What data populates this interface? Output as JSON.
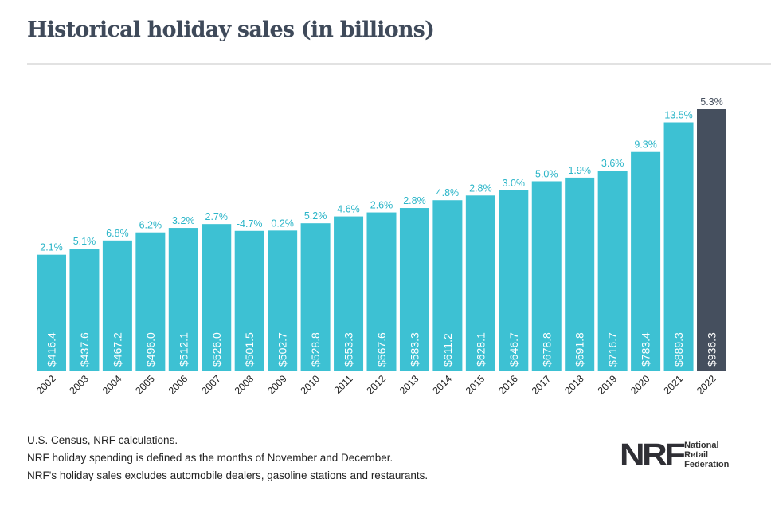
{
  "title": "Historical holiday sales (in billions)",
  "notes": [
    "U.S. Census, NRF calculations.",
    "NRF holiday spending is defined as the months of November and December.",
    "NRF's holiday sales excludes automobile dealers, gasoline stations and restaurants."
  ],
  "logo": {
    "mark": "NRF",
    "lines": [
      "National",
      "Retail",
      "Federation"
    ]
  },
  "colors": {
    "bar": "#3dc1d3",
    "highlight": "#454f5e",
    "pct": "#2bb5c8",
    "pct_highlight": "#454f5e"
  },
  "chart_data": {
    "type": "bar",
    "title": "Historical holiday sales (in billions)",
    "xlabel": "",
    "ylabel": "",
    "ylim": [
      0,
      936.3
    ],
    "categories": [
      "2002",
      "2003",
      "2004",
      "2005",
      "2006",
      "2007",
      "2008",
      "2009",
      "2010",
      "2011",
      "2012",
      "2013",
      "2014",
      "2015",
      "2016",
      "2017",
      "2018",
      "2019",
      "2020",
      "2021",
      "2022"
    ],
    "values": [
      416.4,
      437.6,
      467.2,
      496.0,
      512.1,
      526.0,
      501.5,
      502.7,
      528.8,
      553.3,
      567.6,
      583.3,
      611.2,
      628.1,
      646.7,
      678.8,
      691.8,
      716.7,
      783.4,
      889.3,
      936.3
    ],
    "value_labels": [
      "$416.4",
      "$437.6",
      "$467.2",
      "$496.0",
      "$512.1",
      "$526.0",
      "$501.5",
      "$502.7",
      "$528.8",
      "$553.3",
      "$567.6",
      "$583.3",
      "$611.2",
      "$628.1",
      "$646.7",
      "$678.8",
      "$691.8",
      "$716.7",
      "$783.4",
      "$889.3",
      "$936.3"
    ],
    "growth_labels": [
      "2.1%",
      "5.1%",
      "6.8%",
      "6.2%",
      "3.2%",
      "2.7%",
      "-4.7%",
      "0.2%",
      "5.2%",
      "4.6%",
      "2.6%",
      "2.8%",
      "4.8%",
      "2.8%",
      "3.0%",
      "5.0%",
      "1.9%",
      "3.6%",
      "9.3%",
      "13.5%",
      "5.3%"
    ],
    "highlight_index": 20,
    "grid": false
  }
}
